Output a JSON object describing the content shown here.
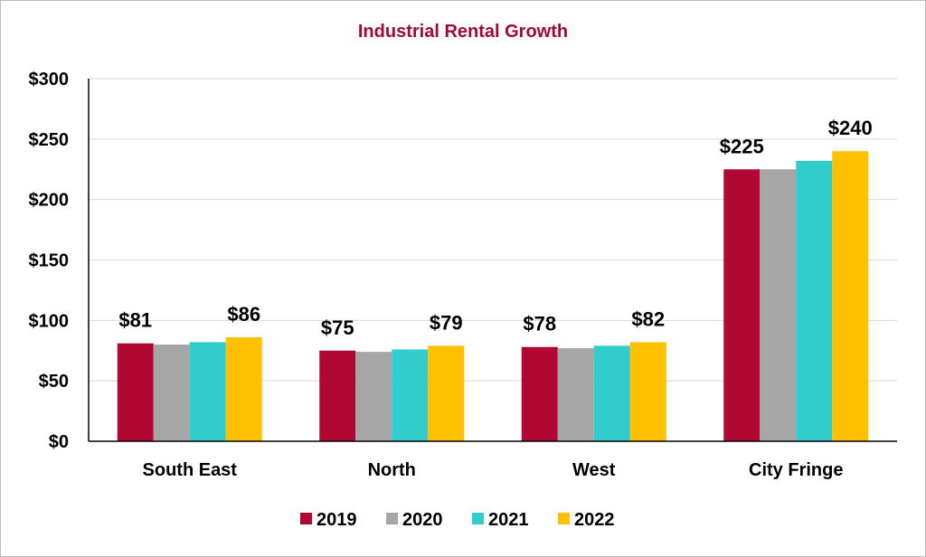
{
  "chart_data": {
    "type": "bar",
    "title": "Industrial Rental Growth",
    "xlabel": "",
    "ylabel": "",
    "categories": [
      "South East",
      "North",
      "West",
      "City Fringe"
    ],
    "series": [
      {
        "name": "2019",
        "color": "#b00833",
        "values": [
          81,
          75,
          78,
          225
        ]
      },
      {
        "name": "2020",
        "color": "#a6a6a6",
        "values": [
          80,
          74,
          77,
          225
        ]
      },
      {
        "name": "2021",
        "color": "#33cccc",
        "values": [
          82,
          76,
          79,
          232
        ]
      },
      {
        "name": "2022",
        "color": "#ffc000",
        "values": [
          86,
          79,
          82,
          240
        ]
      }
    ],
    "data_labels": [
      {
        "series": 0,
        "category": 0,
        "text": "$81"
      },
      {
        "series": 3,
        "category": 0,
        "text": "$86"
      },
      {
        "series": 0,
        "category": 1,
        "text": "$75"
      },
      {
        "series": 3,
        "category": 1,
        "text": "$79"
      },
      {
        "series": 0,
        "category": 2,
        "text": "$78"
      },
      {
        "series": 3,
        "category": 2,
        "text": "$82"
      },
      {
        "series": 0,
        "category": 3,
        "text": "$225"
      },
      {
        "series": 3,
        "category": 3,
        "text": "$240"
      }
    ],
    "ylim": [
      0,
      300
    ],
    "yticks": [
      0,
      50,
      100,
      150,
      200,
      250,
      300
    ],
    "ytick_labels": [
      "$0",
      "$50",
      "$100",
      "$150",
      "$200",
      "$250",
      "$300"
    ],
    "grid": true,
    "legend_position": "bottom"
  }
}
